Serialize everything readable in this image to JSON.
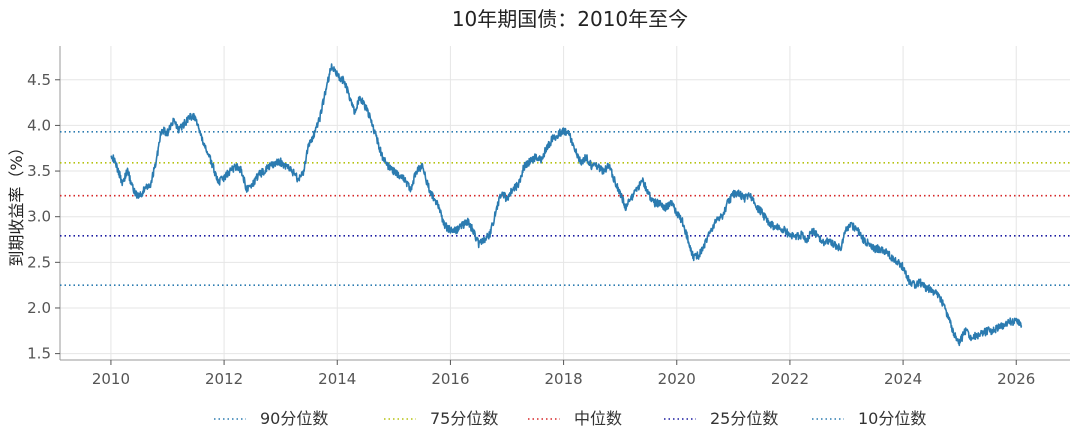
{
  "chart_data": {
    "type": "line",
    "title": "10年期国债：2010年至今",
    "xlabel": "",
    "ylabel": "到期收益率（%）",
    "xlim": [
      2009.1,
      2026.95
    ],
    "ylim": [
      1.43,
      4.87
    ],
    "x_ticks": [
      "2010",
      "2012",
      "2014",
      "2016",
      "2018",
      "2020",
      "2022",
      "2024",
      "2026"
    ],
    "y_ticks": [
      "1.5",
      "2.0",
      "2.5",
      "3.0",
      "3.5",
      "4.0",
      "4.5"
    ],
    "grid": true,
    "legend_position": "bottom",
    "series": [
      {
        "name": "",
        "color": "#2b7bb0",
        "x": [
          2010.0,
          2010.1,
          2010.2,
          2010.3,
          2010.4,
          2010.5,
          2010.6,
          2010.7,
          2010.8,
          2010.9,
          2011.0,
          2011.1,
          2011.2,
          2011.3,
          2011.4,
          2011.5,
          2011.6,
          2011.7,
          2011.8,
          2011.9,
          2012.0,
          2012.1,
          2012.2,
          2012.3,
          2012.4,
          2012.5,
          2012.6,
          2012.7,
          2012.8,
          2012.9,
          2013.0,
          2013.1,
          2013.2,
          2013.3,
          2013.4,
          2013.5,
          2013.6,
          2013.7,
          2013.8,
          2013.9,
          2014.0,
          2014.1,
          2014.2,
          2014.3,
          2014.4,
          2014.5,
          2014.6,
          2014.7,
          2014.8,
          2014.9,
          2015.0,
          2015.1,
          2015.2,
          2015.3,
          2015.4,
          2015.5,
          2015.6,
          2015.7,
          2015.8,
          2015.9,
          2016.0,
          2016.1,
          2016.2,
          2016.3,
          2016.4,
          2016.5,
          2016.6,
          2016.7,
          2016.8,
          2016.9,
          2017.0,
          2017.1,
          2017.2,
          2017.3,
          2017.4,
          2017.5,
          2017.6,
          2017.7,
          2017.8,
          2017.9,
          2018.0,
          2018.1,
          2018.2,
          2018.3,
          2018.4,
          2018.5,
          2018.6,
          2018.7,
          2018.8,
          2018.9,
          2019.0,
          2019.1,
          2019.2,
          2019.3,
          2019.4,
          2019.5,
          2019.6,
          2019.7,
          2019.8,
          2019.9,
          2020.0,
          2020.1,
          2020.2,
          2020.3,
          2020.4,
          2020.5,
          2020.6,
          2020.7,
          2020.8,
          2020.9,
          2021.0,
          2021.1,
          2021.2,
          2021.3,
          2021.4,
          2021.5,
          2021.6,
          2021.7,
          2021.8,
          2021.9,
          2022.0,
          2022.1,
          2022.2,
          2022.3,
          2022.4,
          2022.5,
          2022.6,
          2022.7,
          2022.8,
          2022.9,
          2023.0,
          2023.1,
          2023.2,
          2023.3,
          2023.4,
          2023.5,
          2023.6,
          2023.7,
          2023.8,
          2023.9,
          2024.0,
          2024.1,
          2024.2,
          2024.3,
          2024.4,
          2024.5,
          2024.6,
          2024.7,
          2024.8,
          2024.9,
          2025.0,
          2025.1,
          2025.2,
          2025.3,
          2025.4,
          2025.5,
          2025.6,
          2025.7,
          2025.8,
          2025.9,
          2026.0,
          2026.1
        ],
        "values": [
          3.7,
          3.55,
          3.38,
          3.5,
          3.28,
          3.22,
          3.3,
          3.35,
          3.62,
          3.95,
          3.92,
          4.05,
          3.95,
          4.02,
          4.1,
          4.08,
          3.85,
          3.72,
          3.55,
          3.38,
          3.42,
          3.5,
          3.55,
          3.52,
          3.3,
          3.35,
          3.45,
          3.5,
          3.55,
          3.58,
          3.6,
          3.55,
          3.5,
          3.42,
          3.48,
          3.8,
          3.9,
          4.1,
          4.4,
          4.65,
          4.55,
          4.5,
          4.35,
          4.15,
          4.3,
          4.2,
          4.05,
          3.85,
          3.65,
          3.55,
          3.5,
          3.45,
          3.4,
          3.3,
          3.5,
          3.55,
          3.35,
          3.2,
          3.1,
          2.9,
          2.85,
          2.85,
          2.9,
          2.95,
          2.85,
          2.7,
          2.75,
          2.8,
          3.05,
          3.25,
          3.2,
          3.3,
          3.35,
          3.55,
          3.6,
          3.65,
          3.62,
          3.75,
          3.85,
          3.9,
          3.95,
          3.9,
          3.75,
          3.6,
          3.65,
          3.55,
          3.55,
          3.5,
          3.55,
          3.4,
          3.25,
          3.1,
          3.2,
          3.3,
          3.4,
          3.25,
          3.15,
          3.15,
          3.1,
          3.15,
          3.05,
          2.95,
          2.75,
          2.55,
          2.58,
          2.7,
          2.85,
          2.95,
          3.0,
          3.15,
          3.25,
          3.25,
          3.2,
          3.25,
          3.1,
          3.05,
          2.95,
          2.9,
          2.88,
          2.85,
          2.8,
          2.78,
          2.8,
          2.75,
          2.85,
          2.78,
          2.7,
          2.75,
          2.68,
          2.65,
          2.88,
          2.9,
          2.85,
          2.75,
          2.7,
          2.65,
          2.65,
          2.62,
          2.55,
          2.5,
          2.45,
          2.3,
          2.25,
          2.28,
          2.22,
          2.2,
          2.15,
          2.05,
          1.9,
          1.72,
          1.62,
          1.75,
          1.68,
          1.7,
          1.72,
          1.75,
          1.75,
          1.8,
          1.82,
          1.85,
          1.85,
          1.8
        ]
      }
    ],
    "reference_lines": [
      {
        "name": "90分位数",
        "value": 3.93,
        "color": "#2b7bb0"
      },
      {
        "name": "75分位数",
        "value": 3.59,
        "color": "#b5c20f"
      },
      {
        "name": "中位数",
        "value": 3.23,
        "color": "#d62728"
      },
      {
        "name": "25分位数",
        "value": 2.79,
        "color": "#1a1aa0"
      },
      {
        "name": "10分位数",
        "value": 2.25,
        "color": "#2b7bb0"
      }
    ]
  }
}
